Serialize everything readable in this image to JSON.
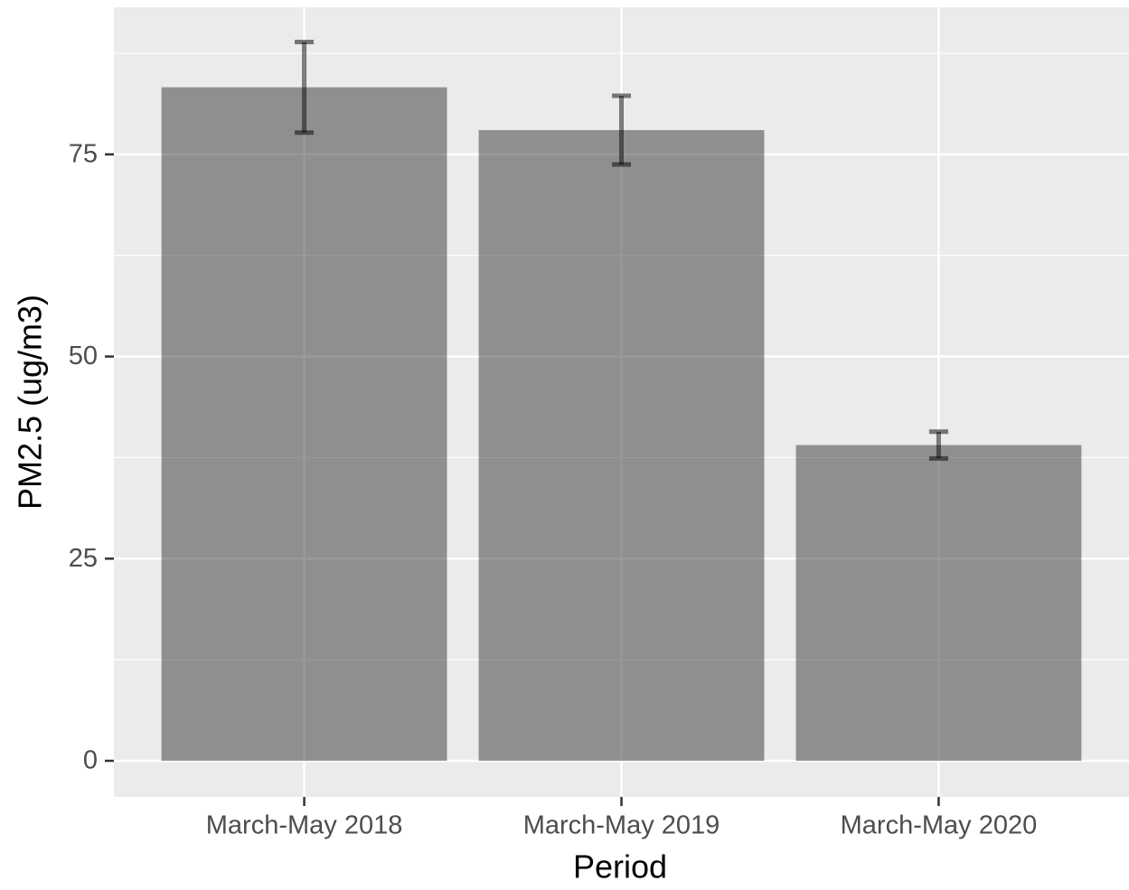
{
  "chart_data": {
    "type": "bar",
    "categories": [
      "March-May 2018",
      "March-May 2019",
      "March-May 2020"
    ],
    "values": [
      83.3,
      78.0,
      39.05
    ],
    "errors": [
      5.6,
      4.25,
      1.65
    ],
    "color": "#333333",
    "alpha": 0.5,
    "x_label": "Period",
    "y_label": "PM2.5 (ug/m3)",
    "ylim": [
      -4.47,
      93.2
    ],
    "yticks": [
      0,
      25,
      50,
      75
    ],
    "y_minor_ticks": [
      12.5,
      37.5,
      62.5,
      87.5
    ],
    "grid": true
  }
}
